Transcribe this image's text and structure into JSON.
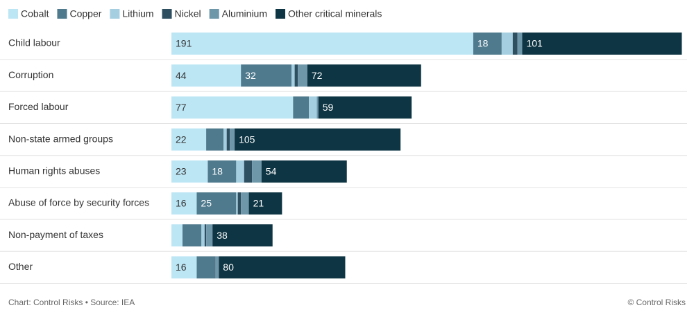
{
  "chart_data": {
    "type": "stacked-bar-horizontal",
    "categories": [
      "Child labour",
      "Corruption",
      "Forced labour",
      "Non-state armed groups",
      "Human rights abuses",
      "Abuse of force by security forces",
      "Non-payment of taxes",
      "Other"
    ],
    "series": [
      {
        "name": "Cobalt",
        "color": "#bde6f5",
        "values": [
          191,
          44,
          77,
          22,
          23,
          16,
          7,
          16
        ],
        "value_labels": [
          "191",
          "44",
          "77",
          "22",
          "23",
          "16",
          null,
          "16"
        ]
      },
      {
        "name": "Copper",
        "color": "#4f7a8d",
        "values": [
          18,
          32,
          10,
          11,
          18,
          25,
          12,
          12
        ],
        "value_labels": [
          "18",
          "32",
          null,
          null,
          "18",
          "25",
          null,
          null
        ]
      },
      {
        "name": "Lithium",
        "color": "#a5cfe0",
        "values": [
          7,
          2,
          5,
          2,
          5,
          1,
          2,
          0
        ]
      },
      {
        "name": "Nickel",
        "color": "#2e4f60",
        "values": [
          3,
          2,
          0,
          2,
          5,
          2,
          1,
          0
        ]
      },
      {
        "name": "Aluminium",
        "color": "#6e97aa",
        "values": [
          3,
          6,
          1,
          3,
          6,
          5,
          4,
          2
        ]
      },
      {
        "name": "Other critical minerals",
        "color": "#0e3543",
        "values": [
          101,
          72,
          59,
          105,
          54,
          21,
          38,
          80
        ],
        "value_labels": [
          "101",
          "72",
          "59",
          "105",
          "54",
          "21",
          "38",
          "80"
        ]
      }
    ],
    "xlim": [
      0,
      325
    ],
    "source": "Chart: Control Risks • Source: IEA",
    "credit": "© Control Risks"
  }
}
